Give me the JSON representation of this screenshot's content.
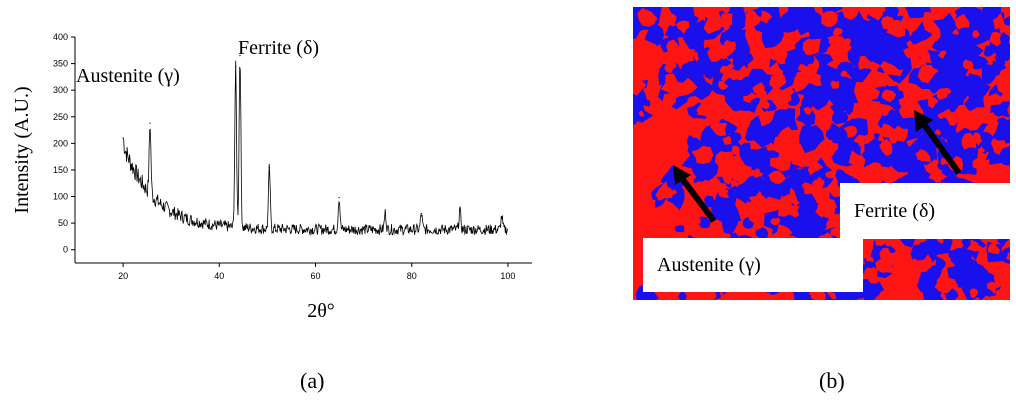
{
  "chart_data": {
    "type": "line",
    "xlabel": "2θ°",
    "ylabel": "Intensity (A.U.)",
    "xlim": [
      10,
      105
    ],
    "ylim": [
      -25,
      400
    ],
    "xticks": [
      "20",
      "40",
      "60",
      "80",
      "100"
    ],
    "yticks": [
      "0",
      "50",
      "100",
      "150",
      "200",
      "250",
      "300",
      "350",
      "400"
    ],
    "grid": false,
    "line_color": "#000000",
    "peaks": [
      {
        "x": 20.0,
        "y": 210
      },
      {
        "x": 25.6,
        "y": 238
      },
      {
        "x": 43.4,
        "y": 345
      },
      {
        "x": 44.3,
        "y": 365
      },
      {
        "x": 50.4,
        "y": 155
      },
      {
        "x": 64.9,
        "y": 98
      },
      {
        "x": 74.5,
        "y": 70
      },
      {
        "x": 82.0,
        "y": 68
      },
      {
        "x": 90.0,
        "y": 75
      },
      {
        "x": 98.7,
        "y": 62
      }
    ],
    "annotations": [
      {
        "text": "Austenite (γ)"
      },
      {
        "text": "Ferrite (δ)"
      }
    ]
  },
  "captions": {
    "a": "(a)",
    "b": "(b)"
  },
  "micrograph": {
    "labels": {
      "austenite": "Austenite (γ)",
      "ferrite": "Ferrite (δ)"
    },
    "colors": {
      "austenite": "#ff1414",
      "ferrite": "#1a10ee"
    }
  }
}
